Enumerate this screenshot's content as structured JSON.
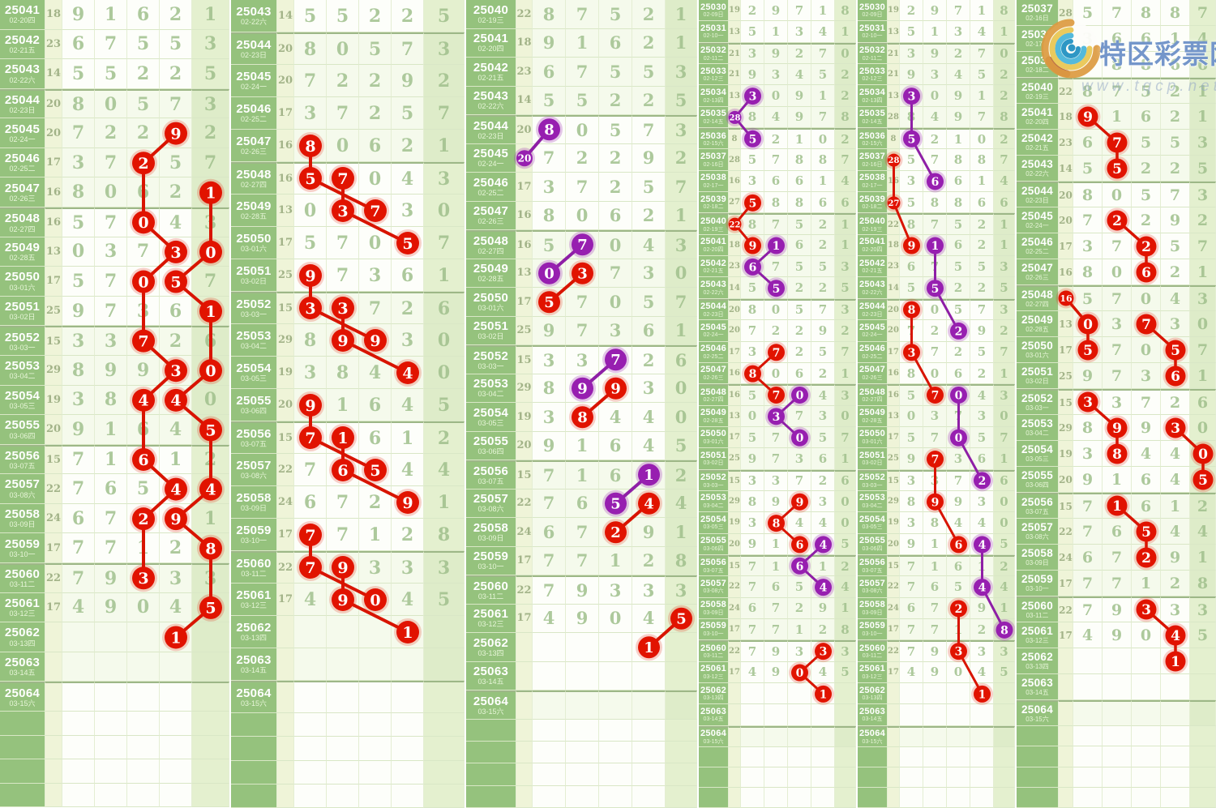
{
  "logo": {
    "site_name": "特区彩票网",
    "watermark": "www.tqcp.net"
  },
  "chart_data": {
    "type": "table",
    "description": "Lottery trend chart: draw id, date(weekday), sum of first four digits, five drawn digits. Marked cells form red/purple chains per panel.",
    "draws": [
      {
        "id": 25030,
        "date": "02-09日",
        "sum": 19,
        "digits": [
          2,
          9,
          7,
          1,
          8
        ]
      },
      {
        "id": 25031,
        "date": "02-10一",
        "sum": 13,
        "digits": [
          5,
          1,
          3,
          4,
          1
        ]
      },
      {
        "id": 25032,
        "date": "02-11二",
        "sum": 21,
        "digits": [
          3,
          9,
          2,
          7,
          0
        ]
      },
      {
        "id": 25033,
        "date": "02-12三",
        "sum": 21,
        "digits": [
          9,
          3,
          4,
          5,
          2
        ]
      },
      {
        "id": 25034,
        "date": "02-13四",
        "sum": 13,
        "digits": [
          3,
          0,
          9,
          1,
          2
        ]
      },
      {
        "id": 25035,
        "date": "02-14五",
        "sum": 28,
        "digits": [
          8,
          4,
          9,
          7,
          8
        ]
      },
      {
        "id": 25036,
        "date": "02-15六",
        "sum": 8,
        "digits": [
          5,
          2,
          1,
          0,
          2
        ]
      },
      {
        "id": 25037,
        "date": "02-16日",
        "sum": 28,
        "digits": [
          5,
          7,
          8,
          8,
          7
        ]
      },
      {
        "id": 25038,
        "date": "02-17一",
        "sum": 16,
        "digits": [
          3,
          6,
          6,
          1,
          4
        ]
      },
      {
        "id": 25039,
        "date": "02-18二",
        "sum": 27,
        "digits": [
          5,
          8,
          8,
          6,
          6
        ]
      },
      {
        "id": 25040,
        "date": "02-19三",
        "sum": 22,
        "digits": [
          8,
          7,
          5,
          2,
          1
        ]
      },
      {
        "id": 25041,
        "date": "02-20四",
        "sum": 18,
        "digits": [
          9,
          1,
          6,
          2,
          1
        ]
      },
      {
        "id": 25042,
        "date": "02-21五",
        "sum": 23,
        "digits": [
          6,
          7,
          5,
          5,
          3
        ]
      },
      {
        "id": 25043,
        "date": "02-22六",
        "sum": 14,
        "digits": [
          5,
          5,
          2,
          2,
          5
        ]
      },
      {
        "id": 25044,
        "date": "02-23日",
        "sum": 20,
        "digits": [
          8,
          0,
          5,
          7,
          3
        ]
      },
      {
        "id": 25045,
        "date": "02-24一",
        "sum": 20,
        "digits": [
          7,
          2,
          2,
          9,
          2
        ]
      },
      {
        "id": 25046,
        "date": "02-25二",
        "sum": 17,
        "digits": [
          3,
          7,
          2,
          5,
          7
        ]
      },
      {
        "id": 25047,
        "date": "02-26三",
        "sum": 16,
        "digits": [
          8,
          0,
          6,
          2,
          1
        ]
      },
      {
        "id": 25048,
        "date": "02-27四",
        "sum": 16,
        "digits": [
          5,
          7,
          0,
          4,
          3
        ]
      },
      {
        "id": 25049,
        "date": "02-28五",
        "sum": 13,
        "digits": [
          0,
          3,
          7,
          3,
          0
        ]
      },
      {
        "id": 25050,
        "date": "03-01六",
        "sum": 17,
        "digits": [
          5,
          7,
          0,
          5,
          7
        ]
      },
      {
        "id": 25051,
        "date": "03-02日",
        "sum": 25,
        "digits": [
          9,
          7,
          3,
          6,
          1
        ]
      },
      {
        "id": 25052,
        "date": "03-03一",
        "sum": 15,
        "digits": [
          3,
          3,
          7,
          2,
          6
        ]
      },
      {
        "id": 25053,
        "date": "03-04二",
        "sum": 29,
        "digits": [
          8,
          9,
          9,
          3,
          0
        ]
      },
      {
        "id": 25054,
        "date": "03-05三",
        "sum": 19,
        "digits": [
          3,
          8,
          4,
          4,
          0
        ]
      },
      {
        "id": 25055,
        "date": "03-06四",
        "sum": 20,
        "digits": [
          9,
          1,
          6,
          4,
          5
        ]
      },
      {
        "id": 25056,
        "date": "03-07五",
        "sum": 15,
        "digits": [
          7,
          1,
          6,
          1,
          2
        ]
      },
      {
        "id": 25057,
        "date": "03-08六",
        "sum": 22,
        "digits": [
          7,
          6,
          5,
          4,
          4
        ]
      },
      {
        "id": 25058,
        "date": "03-09日",
        "sum": 24,
        "digits": [
          6,
          7,
          2,
          9,
          1
        ]
      },
      {
        "id": 25059,
        "date": "03-10一",
        "sum": 17,
        "digits": [
          7,
          7,
          1,
          2,
          8
        ]
      },
      {
        "id": 25060,
        "date": "03-11二",
        "sum": 22,
        "digits": [
          7,
          9,
          3,
          3,
          3
        ]
      },
      {
        "id": 25061,
        "date": "03-12三",
        "sum": 17,
        "digits": [
          4,
          9,
          0,
          4,
          5
        ]
      },
      {
        "id": 25062,
        "date": "03-13四",
        "sum": null,
        "digits": []
      },
      {
        "id": 25063,
        "date": "03-14五",
        "sum": null,
        "digits": []
      },
      {
        "id": 25064,
        "date": "03-15六",
        "sum": null,
        "digits": []
      }
    ]
  },
  "panels": [
    {
      "name": "panel-1",
      "first": 25041,
      "chains": [
        {
          "color": "red",
          "pts": [
            [
              25045,
              4
            ],
            [
              25046,
              3
            ],
            [
              25048,
              3
            ],
            [
              25049,
              4
            ],
            [
              25050,
              3
            ],
            [
              25052,
              3
            ],
            [
              25053,
              4
            ],
            [
              25054,
              3
            ],
            [
              25056,
              3
            ],
            [
              25057,
              4
            ],
            [
              25058,
              3
            ],
            [
              25060,
              3
            ]
          ]
        },
        {
          "color": "red",
          "pts": [
            [
              25047,
              5
            ],
            [
              25049,
              5
            ],
            [
              25050,
              4
            ],
            [
              25051,
              5
            ],
            [
              25053,
              5
            ],
            [
              25054,
              4
            ],
            [
              25055,
              5
            ],
            [
              25057,
              5
            ],
            [
              25058,
              4
            ],
            [
              25059,
              5
            ],
            [
              25061,
              5
            ],
            [
              25062,
              4,
              1
            ]
          ]
        }
      ]
    },
    {
      "name": "panel-2",
      "first": 25043,
      "chains": [
        {
          "color": "red",
          "pts": [
            [
              25047,
              1
            ],
            [
              25048,
              1
            ],
            [
              25049,
              3
            ]
          ]
        },
        {
          "color": "red",
          "pts": [
            [
              25048,
              2
            ],
            [
              25049,
              2
            ],
            [
              25050,
              4
            ]
          ]
        },
        {
          "color": "red",
          "pts": [
            [
              25051,
              1
            ],
            [
              25052,
              1
            ],
            [
              25053,
              3
            ]
          ]
        },
        {
          "color": "red",
          "pts": [
            [
              25052,
              2
            ],
            [
              25053,
              2
            ],
            [
              25054,
              4
            ]
          ]
        },
        {
          "color": "red",
          "pts": [
            [
              25055,
              1
            ],
            [
              25056,
              1
            ],
            [
              25057,
              3
            ]
          ]
        },
        {
          "color": "red",
          "pts": [
            [
              25056,
              2
            ],
            [
              25057,
              2
            ],
            [
              25058,
              4
            ]
          ]
        },
        {
          "color": "red",
          "pts": [
            [
              25059,
              1
            ],
            [
              25060,
              1
            ],
            [
              25061,
              3
            ]
          ]
        },
        {
          "color": "red",
          "pts": [
            [
              25060,
              2
            ],
            [
              25061,
              2
            ],
            [
              25062,
              4,
              1
            ]
          ]
        }
      ]
    },
    {
      "name": "panel-3",
      "first": 25040,
      "chains": [
        {
          "color": "purple",
          "pts": [
            [
              25044,
              1
            ],
            [
              25045,
              0
            ]
          ]
        },
        {
          "color": "purple",
          "pts": [
            [
              25048,
              2
            ],
            [
              25049,
              1
            ]
          ]
        },
        {
          "color": "purple",
          "pts": [
            [
              25052,
              3
            ],
            [
              25053,
              2
            ]
          ]
        },
        {
          "color": "purple",
          "pts": [
            [
              25056,
              4
            ],
            [
              25057,
              3
            ]
          ]
        },
        {
          "color": "red",
          "pts": [
            [
              25049,
              2
            ],
            [
              25050,
              1
            ]
          ]
        },
        {
          "color": "red",
          "pts": [
            [
              25053,
              3
            ],
            [
              25054,
              2
            ]
          ]
        },
        {
          "color": "red",
          "pts": [
            [
              25057,
              4
            ],
            [
              25058,
              3
            ]
          ]
        },
        {
          "color": "red",
          "pts": [
            [
              25061,
              5
            ],
            [
              25062,
              4,
              1
            ]
          ]
        }
      ]
    },
    {
      "name": "panel-4",
      "first": 25030,
      "chains": [
        {
          "color": "purple",
          "pts": [
            [
              25034,
              1
            ],
            [
              25035,
              0
            ],
            [
              25036,
              1
            ]
          ]
        },
        {
          "color": "purple",
          "pts": [
            [
              25041,
              2
            ],
            [
              25042,
              1
            ],
            [
              25043,
              2
            ]
          ]
        },
        {
          "color": "purple",
          "pts": [
            [
              25048,
              3
            ],
            [
              25049,
              2
            ],
            [
              25050,
              3
            ]
          ]
        },
        {
          "color": "purple",
          "pts": [
            [
              25055,
              4
            ],
            [
              25056,
              3
            ],
            [
              25057,
              4
            ]
          ]
        },
        {
          "color": "red",
          "pts": [
            [
              25039,
              1
            ],
            [
              25040,
              0
            ],
            [
              25041,
              1
            ]
          ]
        },
        {
          "color": "red",
          "pts": [
            [
              25046,
              2
            ],
            [
              25047,
              1
            ],
            [
              25048,
              2
            ]
          ]
        },
        {
          "color": "red",
          "pts": [
            [
              25053,
              3
            ],
            [
              25054,
              2
            ],
            [
              25055,
              3
            ]
          ]
        },
        {
          "color": "red",
          "pts": [
            [
              25060,
              4
            ],
            [
              25061,
              3
            ],
            [
              25062,
              4,
              1
            ]
          ]
        }
      ]
    },
    {
      "name": "panel-5",
      "first": 25030,
      "chains": [
        {
          "color": "purple",
          "pts": [
            [
              25034,
              1
            ],
            [
              25036,
              1
            ],
            [
              25038,
              2
            ]
          ]
        },
        {
          "color": "purple",
          "pts": [
            [
              25041,
              2
            ],
            [
              25043,
              2
            ],
            [
              25045,
              3
            ]
          ]
        },
        {
          "color": "purple",
          "pts": [
            [
              25048,
              3
            ],
            [
              25050,
              3
            ],
            [
              25052,
              4
            ]
          ]
        },
        {
          "color": "purple",
          "pts": [
            [
              25055,
              4
            ],
            [
              25057,
              4
            ],
            [
              25059,
              5
            ]
          ]
        },
        {
          "color": "red",
          "pts": [
            [
              25037,
              0
            ],
            [
              25039,
              0
            ],
            [
              25041,
              1
            ]
          ]
        },
        {
          "color": "red",
          "pts": [
            [
              25044,
              1
            ],
            [
              25046,
              1
            ],
            [
              25048,
              2
            ]
          ]
        },
        {
          "color": "red",
          "pts": [
            [
              25051,
              2
            ],
            [
              25053,
              2
            ],
            [
              25055,
              3
            ]
          ]
        },
        {
          "color": "red",
          "pts": [
            [
              25058,
              3
            ],
            [
              25060,
              3
            ],
            [
              25062,
              4,
              1
            ]
          ]
        }
      ]
    },
    {
      "name": "panel-6",
      "first": 25037,
      "chains": [
        {
          "color": "red",
          "pts": [
            [
              25041,
              1
            ],
            [
              25042,
              2
            ],
            [
              25043,
              2
            ]
          ]
        },
        {
          "color": "red",
          "pts": [
            [
              25045,
              2
            ],
            [
              25046,
              3
            ],
            [
              25047,
              3
            ]
          ]
        },
        {
          "color": "red",
          "pts": [
            [
              25048,
              0
            ],
            [
              25049,
              1
            ],
            [
              25050,
              1
            ]
          ]
        },
        {
          "color": "red",
          "pts": [
            [
              25049,
              3
            ],
            [
              25050,
              4
            ],
            [
              25051,
              4
            ]
          ]
        },
        {
          "color": "red",
          "pts": [
            [
              25052,
              1
            ],
            [
              25053,
              2
            ],
            [
              25054,
              2
            ]
          ]
        },
        {
          "color": "red",
          "pts": [
            [
              25053,
              4
            ],
            [
              25054,
              5
            ],
            [
              25055,
              5
            ]
          ]
        },
        {
          "color": "red",
          "pts": [
            [
              25056,
              2
            ],
            [
              25057,
              3
            ],
            [
              25058,
              3
            ]
          ]
        },
        {
          "color": "red",
          "pts": [
            [
              25060,
              3
            ],
            [
              25061,
              4
            ],
            [
              25062,
              4,
              1
            ]
          ]
        }
      ]
    }
  ]
}
